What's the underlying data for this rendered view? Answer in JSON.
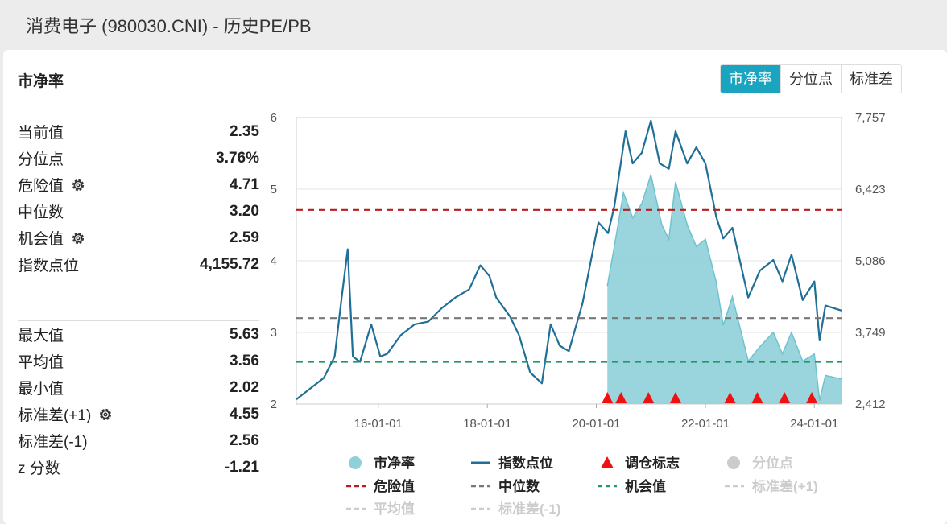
{
  "header": {
    "title": "消费电子 (980030.CNI) - 历史PE/PB"
  },
  "card": {
    "title": "市净率"
  },
  "tabs": [
    {
      "label": "市净率",
      "active": true
    },
    {
      "label": "分位点",
      "active": false
    },
    {
      "label": "标准差",
      "active": false
    }
  ],
  "stats_top": [
    {
      "label": "当前值",
      "value": "2.35",
      "gear": false
    },
    {
      "label": "分位点",
      "value": "3.76%",
      "gear": false
    },
    {
      "label": "危险值",
      "value": "4.71",
      "gear": true
    },
    {
      "label": "中位数",
      "value": "3.20",
      "gear": false
    },
    {
      "label": "机会值",
      "value": "2.59",
      "gear": true
    },
    {
      "label": "指数点位",
      "value": "4,155.72",
      "gear": false
    }
  ],
  "stats_bottom": [
    {
      "label": "最大值",
      "value": "5.63",
      "gear": false
    },
    {
      "label": "平均值",
      "value": "3.56",
      "gear": false
    },
    {
      "label": "最小值",
      "value": "2.02",
      "gear": false
    },
    {
      "label": "标准差(+1)",
      "value": "4.55",
      "gear": true
    },
    {
      "label": "标准差(-1)",
      "value": "2.56",
      "gear": false
    },
    {
      "label": "z 分数",
      "value": "-1.21",
      "gear": false
    }
  ],
  "colors": {
    "pb_fill": "#8fd0d9",
    "index_line": "#1f6f96",
    "danger": "#b81e1e",
    "median": "#777777",
    "opportunity": "#229966",
    "marker": "#ee1111",
    "disabled": "#cccccc",
    "tab_active": "#1aa4c0"
  },
  "chart_data": {
    "type": "line",
    "x_range": [
      "2014-07-01",
      "2024-07-01"
    ],
    "x_ticks": [
      "16-01-01",
      "18-01-01",
      "20-01-01",
      "22-01-01",
      "24-01-01"
    ],
    "y_left": {
      "ticks": [
        "2",
        "3",
        "4",
        "5",
        "6"
      ],
      "range": [
        2,
        6
      ]
    },
    "y_right": {
      "ticks": [
        "2,412",
        "3,749",
        "5,086",
        "6,423",
        "7,757"
      ],
      "range": [
        2412,
        7757
      ]
    },
    "reference_lines": [
      {
        "name": "危险值",
        "value": 4.71
      },
      {
        "name": "中位数",
        "value": 3.2
      },
      {
        "name": "机会值",
        "value": 2.59
      }
    ],
    "series": [
      {
        "name": "指数点位",
        "axis": "right",
        "points": [
          [
            "2014-07-01",
            2500
          ],
          [
            "2014-10-01",
            2700
          ],
          [
            "2015-01-01",
            2900
          ],
          [
            "2015-03-15",
            3300
          ],
          [
            "2015-05-01",
            4400
          ],
          [
            "2015-06-10",
            5300
          ],
          [
            "2015-07-15",
            3300
          ],
          [
            "2015-09-01",
            3200
          ],
          [
            "2015-11-15",
            3900
          ],
          [
            "2016-01-15",
            3300
          ],
          [
            "2016-03-01",
            3350
          ],
          [
            "2016-06-01",
            3700
          ],
          [
            "2016-09-01",
            3900
          ],
          [
            "2016-12-01",
            3950
          ],
          [
            "2017-03-01",
            4200
          ],
          [
            "2017-06-01",
            4400
          ],
          [
            "2017-09-01",
            4550
          ],
          [
            "2017-11-15",
            5000
          ],
          [
            "2018-01-15",
            4800
          ],
          [
            "2018-03-01",
            4400
          ],
          [
            "2018-06-01",
            4050
          ],
          [
            "2018-08-01",
            3700
          ],
          [
            "2018-10-15",
            3000
          ],
          [
            "2019-01-01",
            2800
          ],
          [
            "2019-03-01",
            3900
          ],
          [
            "2019-05-01",
            3500
          ],
          [
            "2019-07-01",
            3400
          ],
          [
            "2019-10-01",
            4300
          ],
          [
            "2020-01-15",
            5800
          ],
          [
            "2020-03-20",
            5600
          ],
          [
            "2020-05-01",
            6100
          ],
          [
            "2020-07-15",
            7500
          ],
          [
            "2020-09-01",
            6900
          ],
          [
            "2020-11-01",
            7100
          ],
          [
            "2021-01-01",
            7700
          ],
          [
            "2021-03-01",
            6900
          ],
          [
            "2021-05-01",
            6800
          ],
          [
            "2021-06-15",
            7500
          ],
          [
            "2021-09-01",
            6900
          ],
          [
            "2021-11-01",
            7200
          ],
          [
            "2022-01-01",
            6900
          ],
          [
            "2022-03-15",
            5900
          ],
          [
            "2022-05-01",
            5500
          ],
          [
            "2022-07-01",
            5700
          ],
          [
            "2022-10-15",
            4400
          ],
          [
            "2023-01-01",
            4900
          ],
          [
            "2023-04-01",
            5100
          ],
          [
            "2023-06-01",
            4700
          ],
          [
            "2023-08-01",
            5200
          ],
          [
            "2023-10-15",
            4350
          ],
          [
            "2024-01-01",
            4700
          ],
          [
            "2024-02-05",
            3600
          ],
          [
            "2024-03-15",
            4250
          ],
          [
            "2024-07-01",
            4156
          ]
        ]
      },
      {
        "name": "市净率",
        "axis": "left",
        "points": [
          [
            "2020-03-15",
            3.65
          ],
          [
            "2020-05-01",
            4.2
          ],
          [
            "2020-07-01",
            4.95
          ],
          [
            "2020-09-01",
            4.6
          ],
          [
            "2020-11-01",
            4.8
          ],
          [
            "2021-01-01",
            5.2
          ],
          [
            "2021-03-15",
            4.5
          ],
          [
            "2021-05-01",
            4.3
          ],
          [
            "2021-06-15",
            5.1
          ],
          [
            "2021-09-01",
            4.5
          ],
          [
            "2021-11-01",
            4.2
          ],
          [
            "2022-01-01",
            4.3
          ],
          [
            "2022-03-15",
            3.7
          ],
          [
            "2022-05-01",
            3.1
          ],
          [
            "2022-07-01",
            3.5
          ],
          [
            "2022-10-15",
            2.6
          ],
          [
            "2023-01-01",
            2.8
          ],
          [
            "2023-04-01",
            3.0
          ],
          [
            "2023-06-01",
            2.7
          ],
          [
            "2023-08-01",
            3.0
          ],
          [
            "2023-10-15",
            2.6
          ],
          [
            "2024-01-01",
            2.7
          ],
          [
            "2024-02-05",
            2.05
          ],
          [
            "2024-03-15",
            2.4
          ],
          [
            "2024-07-01",
            2.35
          ]
        ]
      }
    ],
    "markers": {
      "name": "调仓标志",
      "dates": [
        "2020-03-15",
        "2020-06-15",
        "2020-12-15",
        "2021-06-15",
        "2022-06-15",
        "2022-12-15",
        "2023-06-15",
        "2023-12-15"
      ]
    },
    "legend": [
      {
        "name": "市净率",
        "kind": "dot",
        "color": "#8fd0d9",
        "enabled": true
      },
      {
        "name": "指数点位",
        "kind": "line",
        "color": "#1f6f96",
        "enabled": true
      },
      {
        "name": "调仓标志",
        "kind": "triangle",
        "color": "#ee1111",
        "enabled": true
      },
      {
        "name": "分位点",
        "kind": "dot",
        "color": "#cccccc",
        "enabled": false
      },
      {
        "name": "危险值",
        "kind": "dash",
        "color": "#b81e1e",
        "enabled": true
      },
      {
        "name": "中位数",
        "kind": "dash",
        "color": "#777777",
        "enabled": true
      },
      {
        "name": "机会值",
        "kind": "dash",
        "color": "#229966",
        "enabled": true
      },
      {
        "name": "标准差(+1)",
        "kind": "dash",
        "color": "#cccccc",
        "enabled": false
      },
      {
        "name": "平均值",
        "kind": "dash",
        "color": "#cccccc",
        "enabled": false
      },
      {
        "name": "标准差(-1)",
        "kind": "dash",
        "color": "#cccccc",
        "enabled": false
      }
    ]
  }
}
